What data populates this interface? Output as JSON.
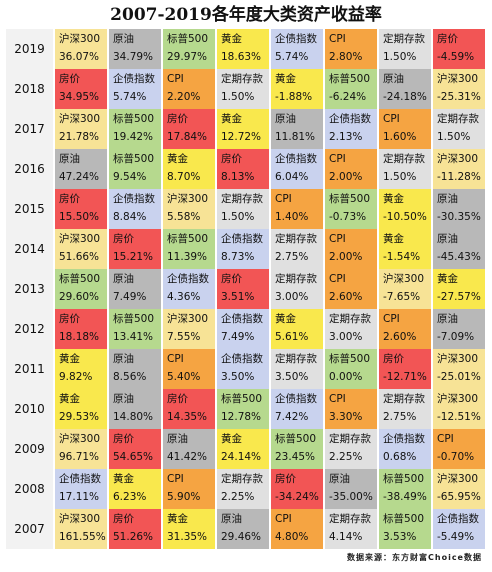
{
  "chart_data": {
    "type": "table",
    "title": "2007-2019各年度大类资产收益率",
    "colors": {
      "沪深300": "#f7e396",
      "原油": "#b8b8b8",
      "标普500": "#b6d98e",
      "黄金": "#f9e84d",
      "企债指数": "#c9d2ee",
      "CPI": "#f5a442",
      "定期存款": "#e0e0e0",
      "房价": "#f25555"
    },
    "rows": [
      {
        "year": "2019",
        "cells": [
          {
            "asset": "沪深300",
            "value": "36.07%"
          },
          {
            "asset": "原油",
            "value": "34.79%"
          },
          {
            "asset": "标普500",
            "value": "29.97%"
          },
          {
            "asset": "黄金",
            "value": "18.63%"
          },
          {
            "asset": "企债指数",
            "value": "5.74%"
          },
          {
            "asset": "CPI",
            "value": "2.80%"
          },
          {
            "asset": "定期存款",
            "value": "1.50%"
          },
          {
            "asset": "房价",
            "value": "-4.59%"
          }
        ]
      },
      {
        "year": "2018",
        "cells": [
          {
            "asset": "房价",
            "value": "34.95%"
          },
          {
            "asset": "企债指数",
            "value": "5.74%"
          },
          {
            "asset": "CPI",
            "value": "2.20%"
          },
          {
            "asset": "定期存款",
            "value": "1.50%"
          },
          {
            "asset": "黄金",
            "value": "-1.88%"
          },
          {
            "asset": "标普500",
            "value": "-6.24%"
          },
          {
            "asset": "原油",
            "value": "-24.18%"
          },
          {
            "asset": "沪深300",
            "value": "-25.31%"
          }
        ]
      },
      {
        "year": "2017",
        "cells": [
          {
            "asset": "沪深300",
            "value": "21.78%"
          },
          {
            "asset": "标普500",
            "value": "19.42%"
          },
          {
            "asset": "房价",
            "value": "17.84%"
          },
          {
            "asset": "黄金",
            "value": "12.72%"
          },
          {
            "asset": "原油",
            "value": "11.81%"
          },
          {
            "asset": "企债指数",
            "value": "2.13%"
          },
          {
            "asset": "CPI",
            "value": "1.60%"
          },
          {
            "asset": "定期存款",
            "value": "1.50%"
          }
        ]
      },
      {
        "year": "2016",
        "cells": [
          {
            "asset": "原油",
            "value": "47.24%"
          },
          {
            "asset": "标普500",
            "value": "9.54%"
          },
          {
            "asset": "黄金",
            "value": "8.70%"
          },
          {
            "asset": "房价",
            "value": "8.13%"
          },
          {
            "asset": "企债指数",
            "value": "6.04%"
          },
          {
            "asset": "CPI",
            "value": "2.00%"
          },
          {
            "asset": "定期存款",
            "value": "1.50%"
          },
          {
            "asset": "沪深300",
            "value": "-11.28%"
          }
        ]
      },
      {
        "year": "2015",
        "cells": [
          {
            "asset": "房价",
            "value": "15.50%"
          },
          {
            "asset": "企债指数",
            "value": "8.84%"
          },
          {
            "asset": "沪深300",
            "value": "5.58%"
          },
          {
            "asset": "定期存款",
            "value": "1.50%"
          },
          {
            "asset": "CPI",
            "value": "1.40%"
          },
          {
            "asset": "标普500",
            "value": "-0.73%"
          },
          {
            "asset": "黄金",
            "value": "-10.50%"
          },
          {
            "asset": "原油",
            "value": "-30.35%"
          }
        ]
      },
      {
        "year": "2014",
        "cells": [
          {
            "asset": "沪深300",
            "value": "51.66%"
          },
          {
            "asset": "房价",
            "value": "15.21%"
          },
          {
            "asset": "标普500",
            "value": "11.39%"
          },
          {
            "asset": "企债指数",
            "value": "8.73%"
          },
          {
            "asset": "定期存款",
            "value": "2.75%"
          },
          {
            "asset": "CPI",
            "value": "2.00%"
          },
          {
            "asset": "黄金",
            "value": "-1.54%"
          },
          {
            "asset": "原油",
            "value": "-45.43%"
          }
        ]
      },
      {
        "year": "2013",
        "cells": [
          {
            "asset": "标普500",
            "value": "29.60%"
          },
          {
            "asset": "原油",
            "value": "7.49%"
          },
          {
            "asset": "企债指数",
            "value": "4.36%"
          },
          {
            "asset": "房价",
            "value": "3.51%"
          },
          {
            "asset": "定期存款",
            "value": "3.00%"
          },
          {
            "asset": "CPI",
            "value": "2.60%"
          },
          {
            "asset": "沪深300",
            "value": "-7.65%"
          },
          {
            "asset": "黄金",
            "value": "-27.57%"
          }
        ]
      },
      {
        "year": "2012",
        "cells": [
          {
            "asset": "房价",
            "value": "18.18%"
          },
          {
            "asset": "标普500",
            "value": "13.41%"
          },
          {
            "asset": "沪深300",
            "value": "7.55%"
          },
          {
            "asset": "企债指数",
            "value": "7.49%"
          },
          {
            "asset": "黄金",
            "value": "5.61%"
          },
          {
            "asset": "定期存款",
            "value": "3.00%"
          },
          {
            "asset": "CPI",
            "value": "2.60%"
          },
          {
            "asset": "原油",
            "value": "-7.09%"
          }
        ]
      },
      {
        "year": "2011",
        "cells": [
          {
            "asset": "黄金",
            "value": "9.82%"
          },
          {
            "asset": "原油",
            "value": "8.56%"
          },
          {
            "asset": "CPI",
            "value": "5.40%"
          },
          {
            "asset": "企债指数",
            "value": "3.50%"
          },
          {
            "asset": "定期存款",
            "value": "3.50%"
          },
          {
            "asset": "标普500",
            "value": "0.00%"
          },
          {
            "asset": "房价",
            "value": "-12.71%"
          },
          {
            "asset": "沪深300",
            "value": "-25.01%"
          }
        ]
      },
      {
        "year": "2010",
        "cells": [
          {
            "asset": "黄金",
            "value": "29.53%"
          },
          {
            "asset": "原油",
            "value": "14.80%"
          },
          {
            "asset": "房价",
            "value": "14.35%"
          },
          {
            "asset": "标普500",
            "value": "12.78%"
          },
          {
            "asset": "企债指数",
            "value": "7.42%"
          },
          {
            "asset": "CPI",
            "value": "3.30%"
          },
          {
            "asset": "定期存款",
            "value": "2.75%"
          },
          {
            "asset": "沪深300",
            "value": "-12.51%"
          }
        ]
      },
      {
        "year": "2009",
        "cells": [
          {
            "asset": "沪深300",
            "value": "96.71%"
          },
          {
            "asset": "房价",
            "value": "54.65%"
          },
          {
            "asset": "原油",
            "value": "41.42%"
          },
          {
            "asset": "黄金",
            "value": "24.14%"
          },
          {
            "asset": "标普500",
            "value": "23.45%"
          },
          {
            "asset": "定期存款",
            "value": "2.25%"
          },
          {
            "asset": "企债指数",
            "value": "0.68%"
          },
          {
            "asset": "CPI",
            "value": "-0.70%"
          }
        ]
      },
      {
        "year": "2008",
        "cells": [
          {
            "asset": "企债指数",
            "value": "17.11%"
          },
          {
            "asset": "黄金",
            "value": "6.23%"
          },
          {
            "asset": "CPI",
            "value": "5.90%"
          },
          {
            "asset": "定期存款",
            "value": "2.25%"
          },
          {
            "asset": "房价",
            "value": "-34.24%"
          },
          {
            "asset": "原油",
            "value": "-35.00%"
          },
          {
            "asset": "标普500",
            "value": "-38.49%"
          },
          {
            "asset": "沪深300",
            "value": "-65.95%"
          }
        ]
      },
      {
        "year": "2007",
        "cells": [
          {
            "asset": "沪深300",
            "value": "161.55%"
          },
          {
            "asset": "房价",
            "value": "51.26%"
          },
          {
            "asset": "黄金",
            "value": "31.35%"
          },
          {
            "asset": "原油",
            "value": "29.46%"
          },
          {
            "asset": "CPI",
            "value": "4.80%"
          },
          {
            "asset": "定期存款",
            "value": "4.14%"
          },
          {
            "asset": "标普500",
            "value": "3.53%"
          },
          {
            "asset": "企债指数",
            "value": "-5.49%"
          }
        ]
      }
    ]
  },
  "source": "数据来源：东方财富Choice数据"
}
